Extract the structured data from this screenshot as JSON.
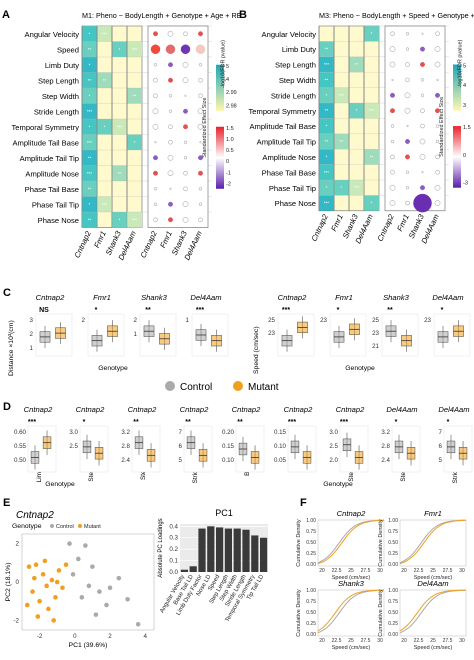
{
  "panels": {
    "A": {
      "label": "A",
      "title": "M1: Pheno ~ BodyLength + Genotype + Age + RE",
      "rows": [
        "Angular Velocity",
        "Speed",
        "Limb Duty",
        "Step Length",
        "Step Width",
        "Stride Length",
        "Temporal Symmetry",
        "Amplitude Tail Base",
        "Amplitude Tail Tip",
        "Amplitude Nose",
        "Phase Tail Base",
        "Phase Tail Tip",
        "Phase Nose"
      ],
      "cols": [
        "Cntnap2",
        "Fmr1",
        "Shank3",
        "Del4Aam"
      ],
      "legend1": {
        "title": "-log10(FDR pvalue)",
        "ticks": [
          "5",
          "4",
          "2.99",
          "2.98"
        ]
      },
      "legend2": {
        "title": "Standardized Effect Size",
        "ticks": [
          "1.5",
          "1.0",
          "0.5",
          "0",
          "-1",
          "-2"
        ]
      }
    },
    "B": {
      "label": "B",
      "title": "M3: Pheno ~ BodyLength + Speed + Genotype + Age + RE",
      "rows": [
        "Angular Velocity",
        "Limb Duty",
        "Step Length",
        "Step Width",
        "Stride Length",
        "Temporal Symmetry",
        "Amplitude Tail Base",
        "Amplitude Tail Tip",
        "Amplitude Nose",
        "Phase Tail Base",
        "Phase Tail Tip",
        "Phase Nose"
      ],
      "cols": [
        "Cntnap2",
        "Fmr1",
        "Shank3",
        "Del4Aam"
      ],
      "legend1": {
        "title": "-log10(FDR pvalue)",
        "ticks": [
          "5",
          "4",
          "3"
        ]
      },
      "legend2": {
        "title": "Standardized Effect Size",
        "ticks": [
          "1.5",
          "0",
          "-3"
        ]
      }
    },
    "C": {
      "label": "C",
      "ylabel": "Distance ×10³(cm)",
      "ylabel2": "Speed (cm/sec)",
      "xlabel": "Genotype",
      "left_genes": [
        "Cntnap2",
        "Fmr1",
        "Shank3",
        "Del4Aam"
      ],
      "left_sig": [
        "NS",
        "*",
        "**",
        "***"
      ],
      "left_ticks": [
        [
          "3",
          "2",
          "1"
        ],
        [
          "2"
        ],
        [
          "2",
          "1"
        ],
        [
          "1"
        ]
      ],
      "right_genes": [
        "Cntnap2",
        "Fmr1",
        "Shank3",
        "Del4Aam"
      ],
      "right_sig": [
        "***",
        "*",
        "**",
        "*"
      ],
      "right_ticks": [
        [
          "25",
          "23"
        ],
        [
          "23"
        ],
        [
          "25",
          "23",
          "21"
        ],
        [
          "23"
        ]
      ]
    },
    "legend": {
      "control": "Control",
      "mutant": "Mutant",
      "control_color": "#aaaaaa",
      "mutant_color": "#f0a01e"
    },
    "D": {
      "label": "D",
      "xlabel": "Genotype",
      "plots": [
        {
          "gene": "Cntnap2",
          "ylabel": "Limb Duty Factor",
          "sig": "***",
          "ticks": [
            "0.60",
            "0.55",
            "0.50"
          ]
        },
        {
          "gene": "Cntnap2",
          "ylabel": "Step Length(cm)",
          "sig": "*",
          "ticks": [
            "3.0",
            "2.5"
          ]
        },
        {
          "gene": "Cntnap2",
          "ylabel": "Step Width(cm)",
          "sig": "**",
          "ticks": [
            "3.2",
            "2.8",
            "2.4"
          ]
        },
        {
          "gene": "Cntnap2",
          "ylabel": "Stride Length(cm)",
          "sig": "**",
          "ticks": [
            "7",
            "6",
            "5"
          ]
        },
        {
          "gene": "Cntnap2",
          "ylabel": "Base Tail LD",
          "sig": "**",
          "ticks": [
            "0.20",
            "0.15",
            "0.10"
          ]
        },
        {
          "gene": "Cntnap2",
          "ylabel": "Nose LD",
          "sig": "***",
          "ticks": [
            "0.15",
            "0.10",
            "0.05"
          ]
        },
        {
          "gene": "Cntnap2",
          "ylabel": "Step Length(cm)",
          "sig": "***",
          "ticks": [
            "3.0",
            "2.5",
            "2.0"
          ]
        },
        {
          "gene": "Del4Aam",
          "ylabel": "Step Length(cm)",
          "sig": "*",
          "ticks": [
            "3.2",
            "2.8",
            "2.4"
          ]
        },
        {
          "gene": "Del4Aam",
          "ylabel": "Stride Length(cm)",
          "sig": "*",
          "ticks": [
            "7",
            "6",
            "5"
          ]
        }
      ]
    },
    "E": {
      "label": "E",
      "gene": "Cntnap2",
      "genotype_label": "Genotype",
      "control": "Control",
      "mutant": "Mutant",
      "xlabel": "PC1 (39.6%)",
      "ylabel": "PC2 (18.1%)",
      "xticks": [
        "-2",
        "0",
        "2",
        "4"
      ],
      "yticks": [
        "2",
        "0",
        "-2"
      ],
      "pc_title": "PC1",
      "pc_ylabel": "Absolute PC Loadings",
      "pc_yticks": [
        "0.4",
        "0.3",
        "0.2",
        "0.1",
        "0.0"
      ],
      "pc_features": [
        "Angular Velocity",
        "Base Tail LD",
        "Limb Duty Factor",
        "Nose LD",
        "Speed",
        "Step Length",
        "Step Width",
        "Stride Length",
        "Temporal Symmetry",
        "Tip Tail LD"
      ],
      "pc_values": [
        0.02,
        0.05,
        0.38,
        0.4,
        0.39,
        0.38,
        0.38,
        0.37,
        0.32,
        0.3
      ]
    },
    "F": {
      "label": "F",
      "xlabel": "Speed (cm/sec)",
      "ylabel": "Cumulative Density",
      "xticks": [
        "20",
        "22.5",
        "25",
        "27.5",
        "30"
      ],
      "yticks": [
        "1.00",
        "0.75",
        "0.50",
        "0.25",
        "0.00"
      ],
      "genes": [
        "Cntnap2",
        "Fmr1",
        "Shank3",
        "Del4Aam"
      ]
    }
  }
}
